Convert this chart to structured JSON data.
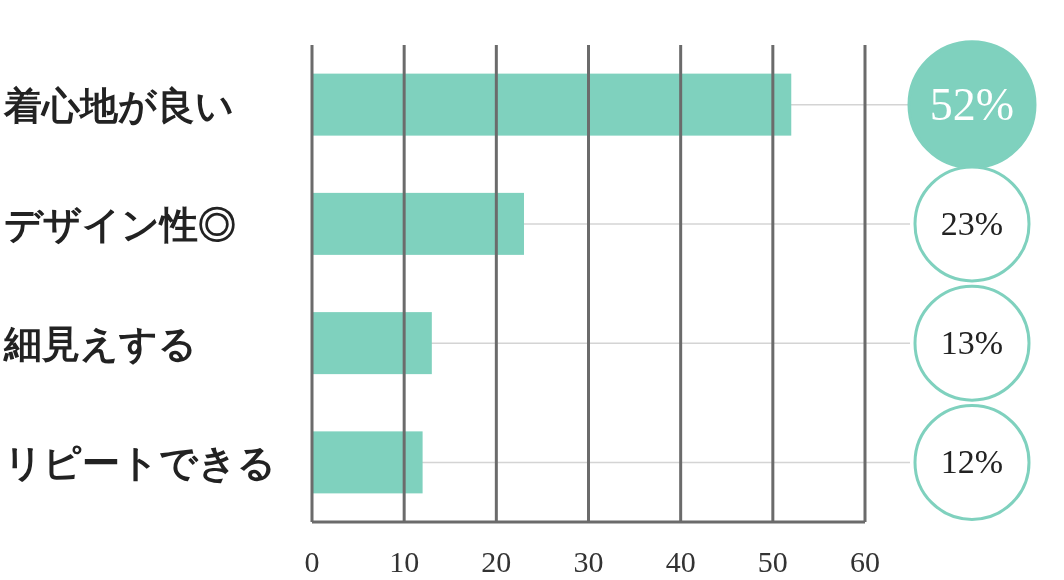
{
  "chart_data": {
    "type": "bar",
    "orientation": "horizontal",
    "categories": [
      "着心地が良い",
      "デザイン性◎",
      "細見えする",
      "リピートできる"
    ],
    "values": [
      52,
      23,
      13,
      12
    ],
    "value_labels": [
      "52%",
      "23%",
      "13%",
      "12%"
    ],
    "color": "#7fd1be",
    "xlim": [
      0,
      60
    ],
    "xticks": [
      0,
      10,
      20,
      30,
      40,
      50,
      60
    ],
    "grid": true
  }
}
